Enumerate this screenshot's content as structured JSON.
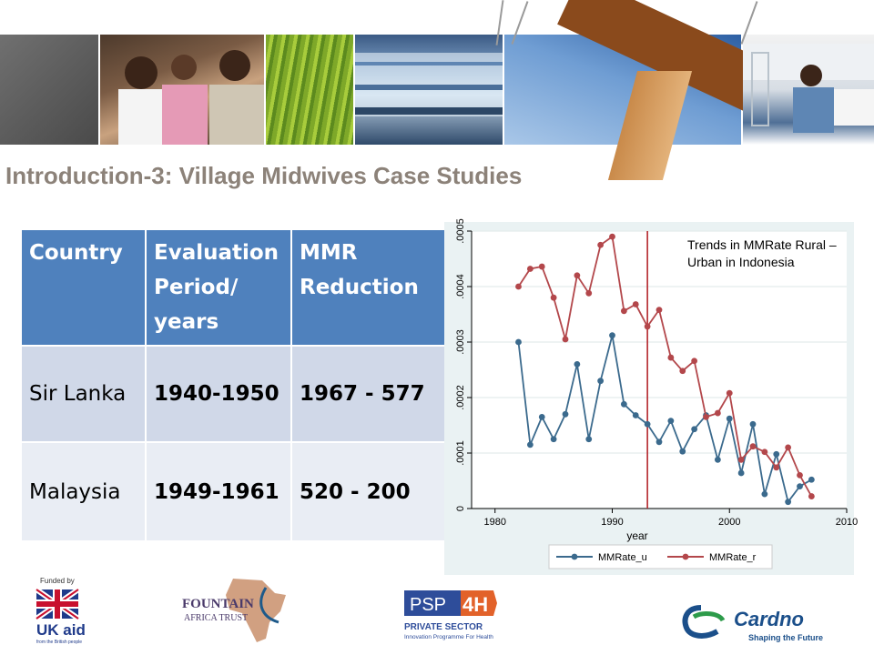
{
  "slide_title": "Introduction-3: Village Midwives Case Studies",
  "table": {
    "headers": [
      "Country",
      "Evaluation Period/ years",
      "MMR Reduction"
    ],
    "rows": [
      [
        "Sir Lanka",
        "1940-1950",
        "1967 - 577"
      ],
      [
        "Malaysia",
        "1949-1961",
        "520 - 200"
      ]
    ]
  },
  "chart_note": "Trends in MMRate Rural –Urban in Indonesia",
  "chart_data": {
    "type": "line",
    "xlabel": "year",
    "ylabel": "",
    "xlim": [
      1978,
      2010
    ],
    "ylim": [
      0,
      0.0005
    ],
    "xticks": [
      1980,
      1990,
      2000,
      2010
    ],
    "yticks": [
      0,
      0.0001,
      0.0002,
      0.0003,
      0.0004,
      0.0005
    ],
    "ytick_labels": [
      "0",
      ".0001",
      ".0002",
      ".0003",
      ".0004",
      ".0005"
    ],
    "reference_line_x": 1993,
    "reference_line_color": "#b5262c",
    "grid": true,
    "legend": "bottom",
    "series": [
      {
        "name": "MMRate_u",
        "color": "#3b6a8d",
        "x": [
          1982,
          1983,
          1984,
          1985,
          1986,
          1987,
          1988,
          1989,
          1990,
          1991,
          1992,
          1993,
          1994,
          1995,
          1996,
          1997,
          1998,
          1999,
          2000,
          2001,
          2002,
          2003,
          2004,
          2005,
          2006,
          2007
        ],
        "values": [
          0.0003,
          0.000115,
          0.000165,
          0.000125,
          0.00017,
          0.00026,
          0.000125,
          0.00023,
          0.000312,
          0.000188,
          0.000168,
          0.000152,
          0.00012,
          0.000158,
          0.000103,
          0.000143,
          0.000168,
          8.8e-05,
          0.000162,
          6.4e-05,
          0.000152,
          2.6e-05,
          9.8e-05,
          1.2e-05,
          4e-05,
          5.2e-05
        ]
      },
      {
        "name": "MMRate_r",
        "color": "#b3474b",
        "x": [
          1982,
          1983,
          1984,
          1985,
          1986,
          1987,
          1988,
          1989,
          1990,
          1991,
          1992,
          1993,
          1994,
          1995,
          1996,
          1997,
          1998,
          1999,
          2000,
          2001,
          2002,
          2003,
          2004,
          2005,
          2006,
          2007
        ],
        "values": [
          0.0004,
          0.000432,
          0.000436,
          0.00038,
          0.000305,
          0.00042,
          0.000388,
          0.000475,
          0.00049,
          0.000356,
          0.000368,
          0.000328,
          0.000358,
          0.000272,
          0.000248,
          0.000266,
          0.000165,
          0.000172,
          0.000208,
          8.8e-05,
          0.000112,
          0.000102,
          7.4e-05,
          0.00011,
          6e-05,
          2.2e-05
        ]
      }
    ]
  },
  "footer": {
    "funded_by": "Funded by",
    "ukaid_text": "UK aid",
    "ukaid_sub": "from the British people",
    "fountain_line1": "FOUNTAIN",
    "fountain_line2": "AFRICA TRUST",
    "psp_text": "PSP",
    "psp_num": "4H",
    "psp_line1": "PRIVATE SECTOR",
    "psp_line2": "Innovation Programme For Health",
    "cardno_text": "Cardno",
    "cardno_tag": "Shaping the Future"
  },
  "colors": {
    "table_header": "#4f81bd",
    "title": "#8c8279",
    "chart_bg": "#eaf2f3"
  }
}
